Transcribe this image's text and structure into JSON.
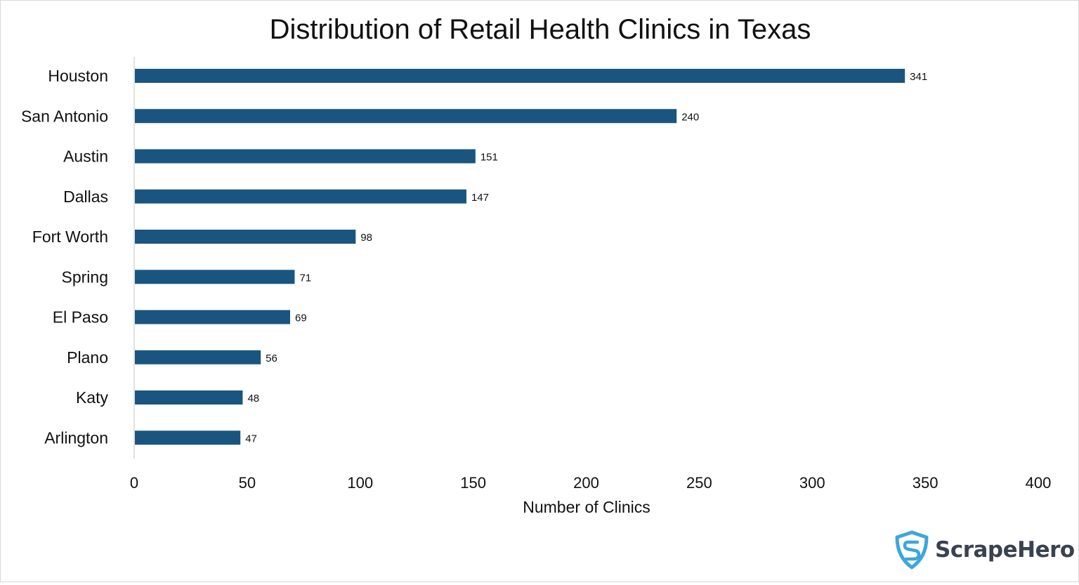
{
  "chart_data": {
    "type": "bar",
    "orientation": "horizontal",
    "title": "Distribution of Retail Health Clinics in Texas",
    "xlabel": "Number of Clinics",
    "ylabel": "",
    "categories": [
      "Houston",
      "San Antonio",
      "Austin",
      "Dallas",
      "Fort Worth",
      "Spring",
      "El Paso",
      "Plano",
      "Katy",
      "Arlington"
    ],
    "values": [
      341,
      240,
      151,
      147,
      98,
      71,
      69,
      56,
      48,
      47
    ],
    "xlim": [
      0,
      400
    ],
    "xticks": [
      0,
      50,
      100,
      150,
      200,
      250,
      300,
      350,
      400
    ],
    "grid": false,
    "data_labels": true,
    "bar_color": "#1a5580"
  },
  "logo": {
    "text": "ScrapeHero",
    "color": "#3ea6dc"
  }
}
